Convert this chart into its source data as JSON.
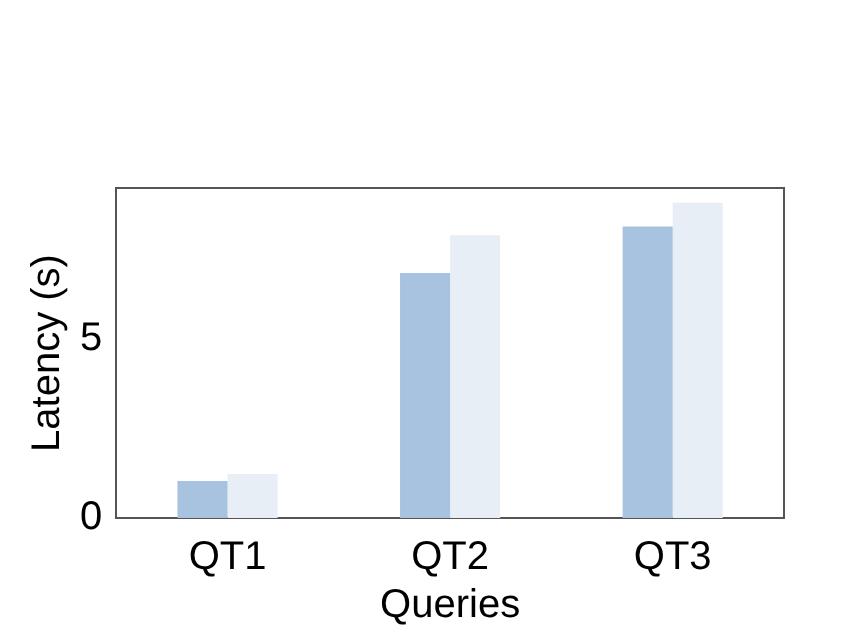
{
  "chart_data": {
    "type": "bar",
    "xlabel": "Queries",
    "ylabel": "Latency (s)",
    "categories": [
      "QT1",
      "QT2",
      "QT3"
    ],
    "series": [
      {
        "color": "#a8c3e0",
        "values": [
          1.03,
          6.83,
          8.13
        ]
      },
      {
        "color": "#e8eef6",
        "values": [
          1.23,
          7.88,
          8.79
        ]
      }
    ],
    "ylim": [
      0,
      9.2
    ],
    "yticks": [
      0,
      5
    ],
    "grid": false,
    "legend": false
  }
}
